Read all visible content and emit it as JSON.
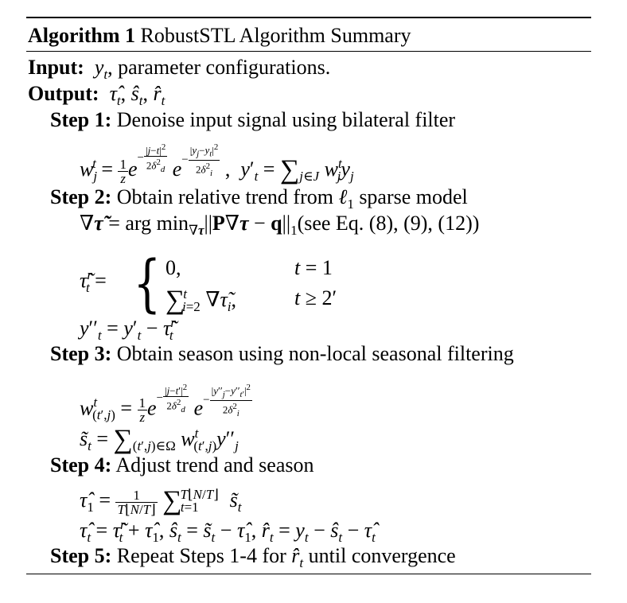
{
  "algorithm": {
    "label": "Algorithm 1",
    "title": "RobustSTL Algorithm Summary"
  },
  "input": {
    "label": "Input:",
    "text": "parameter configurations."
  },
  "output": {
    "label": "Output:"
  },
  "steps": [
    {
      "label": "Step 1:",
      "text": "Denoise input signal using bilateral filter"
    },
    {
      "label": "Step 2:",
      "text": "Obtain relative trend from",
      "tail": "sparse model"
    },
    {
      "label": "Step 3:",
      "text": "Obtain season using non-local seasonal filtering"
    },
    {
      "label": "Step 4:",
      "text": "Adjust trend and season"
    },
    {
      "label": "Step 5:",
      "text": "Repeat Steps 1-4 for",
      "tail": "until convergence"
    }
  ],
  "equations": {
    "see_eq": "(see Eq. (8), (9), (12))",
    "arg_min": "arg min"
  }
}
